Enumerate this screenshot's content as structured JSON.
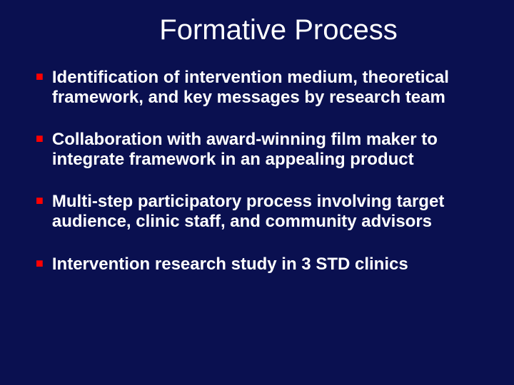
{
  "slide": {
    "title": "Formative Process",
    "background_color": "#0a1050",
    "title_color": "#ffffff",
    "title_fontsize": 40,
    "text_color": "#ffffff",
    "text_fontsize": 24,
    "text_fontweight": "bold",
    "bullet_color": "#ff0000",
    "bullets": [
      {
        "text": "Identification of intervention medium, theoretical framework, and key messages by research team"
      },
      {
        "text": "Collaboration with award-winning film maker to integrate framework in an appealing product"
      },
      {
        "text": "Multi-step participatory process involving target audience, clinic staff, and community advisors"
      },
      {
        "text": "Intervention research study in 3 STD clinics"
      }
    ]
  }
}
